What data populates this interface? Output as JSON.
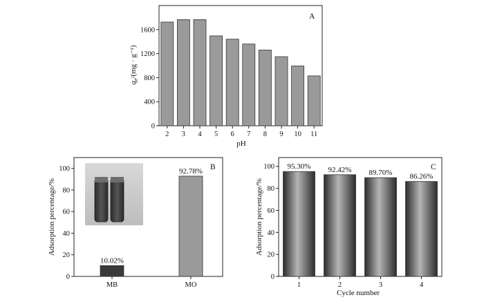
{
  "chart_data": [
    {
      "panel": "A",
      "type": "bar",
      "xlabel": "pH",
      "ylabel_main": "q",
      "ylabel_sub": "e",
      "ylabel_rest": "/(mg · g⁻¹)",
      "categories": [
        "2",
        "3",
        "4",
        "5",
        "6",
        "7",
        "8",
        "9",
        "10",
        "11"
      ],
      "values": [
        1725,
        1765,
        1765,
        1495,
        1440,
        1360,
        1260,
        1150,
        995,
        830
      ],
      "ylim": [
        0,
        2000
      ],
      "yticks": [
        0,
        400,
        800,
        1200,
        1600
      ],
      "bar_color": "#9a9a9a",
      "grid": false
    },
    {
      "panel": "B",
      "type": "bar",
      "xlabel": "",
      "ylabel": "Adsorption percentage/%",
      "categories": [
        "MB",
        "MO"
      ],
      "values": [
        10.02,
        92.78
      ],
      "value_labels": [
        "10.02%",
        "92.78%"
      ],
      "bar_colors": [
        "#3a3a3a",
        "#9a9a9a"
      ],
      "ylim": [
        0,
        110
      ],
      "yticks": [
        0,
        20,
        40,
        60,
        80,
        100
      ],
      "inset": "photo of two vials containing dark dye solutions",
      "grid": false
    },
    {
      "panel": "C",
      "type": "bar",
      "xlabel": "Cycle number",
      "ylabel": "Adsorption percentage/%",
      "categories": [
        "1",
        "2",
        "3",
        "4"
      ],
      "values": [
        95.3,
        92.42,
        89.7,
        86.26
      ],
      "value_labels": [
        "95.30%",
        "92.42%",
        "89.70%",
        "86.26%"
      ],
      "bar_color": "#6a6a6a",
      "ylim": [
        0,
        108
      ],
      "yticks": [
        0,
        20,
        40,
        60,
        80,
        100
      ],
      "grid": false
    }
  ]
}
